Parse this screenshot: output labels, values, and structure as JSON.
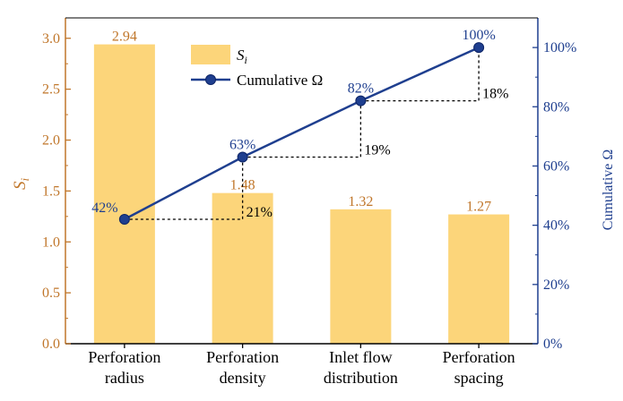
{
  "chart_data": {
    "type": "bar+line",
    "categories": [
      [
        "Perforation",
        "radius"
      ],
      [
        "Perforation",
        "density"
      ],
      [
        "Inlet flow",
        "distribution"
      ],
      [
        "Perforation",
        "spacing"
      ]
    ],
    "bars": {
      "name_main": "S",
      "name_sub": "i",
      "values": [
        2.94,
        1.48,
        1.32,
        1.27
      ],
      "labels": [
        "2.94",
        "1.48",
        "1.32",
        "1.27"
      ],
      "color": "#fcd57a"
    },
    "line": {
      "name": "Cumulative Ω",
      "values": [
        42,
        63,
        82,
        100
      ],
      "labels": [
        "42%",
        "63%",
        "82%",
        "100%"
      ],
      "color": "#1f3f8f"
    },
    "increments": [
      {
        "from": 0,
        "to": 1,
        "label": "21%"
      },
      {
        "from": 1,
        "to": 2,
        "label": "19%"
      },
      {
        "from": 2,
        "to": 3,
        "label": "18%"
      }
    ],
    "y_left": {
      "label_main": "S",
      "label_sub": "i",
      "lim": [
        0,
        3.2
      ],
      "ticks": [
        0.0,
        0.5,
        1.0,
        1.5,
        2.0,
        2.5,
        3.0
      ],
      "tick_labels": [
        "0.0",
        "0.5",
        "1.0",
        "1.5",
        "2.0",
        "2.5",
        "3.0"
      ],
      "color": "#c0762a"
    },
    "y_right": {
      "label": "Cumulative Ω",
      "lim": [
        0,
        110
      ],
      "ticks": [
        0,
        20,
        40,
        60,
        80,
        100
      ],
      "tick_labels": [
        "0%",
        "20%",
        "40%",
        "60%",
        "80%",
        "100%"
      ],
      "color": "#1f3f8f"
    },
    "legend_position": "top-center"
  }
}
